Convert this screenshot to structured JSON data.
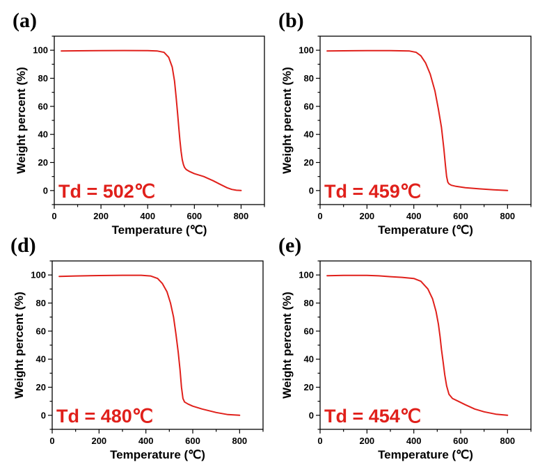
{
  "colors": {
    "curve": "#e0201b",
    "annotation": "#e0201b",
    "axes": "#000000"
  },
  "chart_data": [
    {
      "type": "line",
      "panel_label": "(a)",
      "xlabel": "Temperature (℃)",
      "ylabel": "Weight percent (%)",
      "xlim": [
        0,
        900
      ],
      "ylim": [
        -10,
        110
      ],
      "xticks": [
        0,
        200,
        400,
        600,
        800
      ],
      "yticks": [
        0,
        20,
        40,
        60,
        80,
        100
      ],
      "annotation": "Td = 502℃",
      "grid": false,
      "series": [
        {
          "x": [
            30,
            100,
            200,
            300,
            400,
            440,
            470,
            490,
            505,
            515,
            522,
            528,
            533,
            538,
            543,
            548,
            553,
            558,
            565,
            580,
            600,
            640,
            680,
            710,
            740,
            760,
            780,
            800
          ],
          "y": [
            99.5,
            99.6,
            99.7,
            99.8,
            99.7,
            99.5,
            98.5,
            95,
            88,
            78,
            66,
            55,
            45,
            36,
            28,
            22,
            18.5,
            16.5,
            15,
            13.5,
            12,
            10,
            7,
            4.5,
            2,
            0.8,
            0.2,
            0
          ]
        }
      ]
    },
    {
      "type": "line",
      "panel_label": "(b)",
      "xlabel": "Temperature (℃)",
      "ylabel": "Weight percent (%)",
      "xlim": [
        0,
        900
      ],
      "ylim": [
        -10,
        110
      ],
      "xticks": [
        0,
        200,
        400,
        600,
        800
      ],
      "yticks": [
        0,
        20,
        40,
        60,
        80,
        100
      ],
      "annotation": "Td = 459℃",
      "grid": false,
      "series": [
        {
          "x": [
            30,
            100,
            200,
            300,
            380,
            410,
            430,
            450,
            470,
            490,
            505,
            518,
            528,
            535,
            540,
            545,
            550,
            560,
            580,
            620,
            680,
            740,
            800
          ],
          "y": [
            99.5,
            99.6,
            99.7,
            99.7,
            99.5,
            98.5,
            96,
            91,
            83,
            71,
            58,
            45,
            30,
            18,
            10,
            6,
            4.8,
            3.8,
            3,
            2,
            1.2,
            0.5,
            0
          ]
        }
      ]
    },
    {
      "type": "line",
      "panel_label": "(d)",
      "xlabel": "Temperature (℃)",
      "ylabel": "Weight percent (%)",
      "xlim": [
        0,
        900
      ],
      "ylim": [
        -10,
        110
      ],
      "xticks": [
        0,
        200,
        400,
        600,
        800
      ],
      "yticks": [
        0,
        20,
        40,
        60,
        80,
        100
      ],
      "annotation": "Td = 480℃",
      "grid": false,
      "series": [
        {
          "x": [
            30,
            100,
            200,
            300,
            380,
            420,
            450,
            470,
            490,
            505,
            518,
            528,
            538,
            546,
            552,
            558,
            565,
            580,
            600,
            640,
            700,
            750,
            800
          ],
          "y": [
            99,
            99.3,
            99.6,
            99.8,
            99.8,
            99.3,
            97.5,
            94,
            88,
            80,
            70,
            58,
            45,
            32,
            20,
            12,
            9.5,
            8,
            6.5,
            4.5,
            2,
            0.5,
            0
          ]
        }
      ]
    },
    {
      "type": "line",
      "panel_label": "(e)",
      "xlabel": "Temperature (℃)",
      "ylabel": "Weight percent (%)",
      "xlim": [
        0,
        900
      ],
      "ylim": [
        -10,
        110
      ],
      "xticks": [
        0,
        200,
        400,
        600,
        800
      ],
      "yticks": [
        0,
        20,
        40,
        60,
        80,
        100
      ],
      "annotation": "Td = 454℃",
      "grid": false,
      "series": [
        {
          "x": [
            30,
            100,
            200,
            250,
            300,
            350,
            400,
            430,
            460,
            480,
            495,
            505,
            512,
            518,
            525,
            532,
            540,
            550,
            565,
            590,
            620,
            660,
            700,
            750,
            800
          ],
          "y": [
            99.5,
            99.7,
            99.7,
            99.4,
            98.8,
            98.3,
            97.5,
            95.5,
            90,
            83,
            74,
            65,
            56,
            47,
            38,
            29,
            21,
            15,
            12,
            10,
            7.5,
            4.5,
            2.5,
            0.8,
            0
          ]
        }
      ]
    }
  ]
}
